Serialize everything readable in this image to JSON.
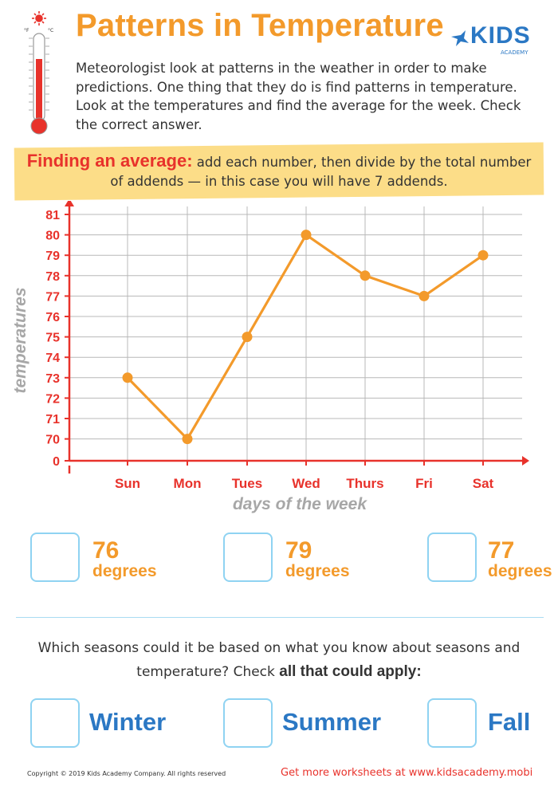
{
  "title": "Patterns in Temperature",
  "intro": "Meteorologist look at patterns in the weather in order to make predictions. One thing that they do is find patterns in temperature. Look at the temperatures and find the average for the week. Check the correct answer.",
  "banner": {
    "key": "Finding an average:",
    "text": "add each number, then divide by the total number of addends — in this case you will have 7 addends."
  },
  "logo": {
    "text": "KIDS",
    "sub": "ACADEMY"
  },
  "thermometer": {
    "f": "°F",
    "c": "°C"
  },
  "colors": {
    "orange": "#f39a2b",
    "red": "#e8322b",
    "blue": "#2b78c4",
    "grid": "#b8b8b8",
    "box": "#8fd3f2",
    "banner": "#fcdd88"
  },
  "chart_data": {
    "type": "line",
    "categories": [
      "Sun",
      "Mon",
      "Tues",
      "Wed",
      "Thurs",
      "Fri",
      "Sat"
    ],
    "values": [
      73,
      70,
      75,
      80,
      78,
      77,
      79
    ],
    "yticks": [
      "81",
      "80",
      "79",
      "78",
      "77",
      "76",
      "75",
      "74",
      "73",
      "72",
      "71",
      "70",
      "0"
    ],
    "ylim": [
      70,
      81
    ],
    "y_break": "axis jumps from 0 to 70",
    "xlabel": "days of the week",
    "ylabel": "temperatures",
    "grid": true
  },
  "answers": [
    {
      "num": "76",
      "unit": "degrees"
    },
    {
      "num": "79",
      "unit": "degrees"
    },
    {
      "num": "77",
      "unit": "degrees"
    }
  ],
  "question": {
    "text": "Which seasons could it be based on what you know about seasons and temperature? Check",
    "strong": "all that could apply:"
  },
  "seasons": [
    "Winter",
    "Summer",
    "Fall"
  ],
  "footer": {
    "copyright": "Copyright © 2019 Kids Academy Company. All rights reserved",
    "link": "Get more worksheets at www.kidsacademy.mobi"
  }
}
